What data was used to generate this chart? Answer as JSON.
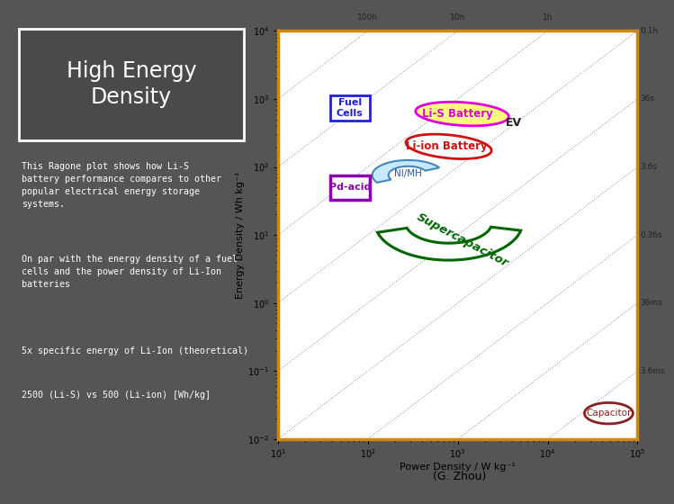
{
  "bg_left": "#555555",
  "title": "High Energy\nDensity",
  "title_color": "#ffffff",
  "text1": "This Ragone plot shows how Li-S\nbattery performance compares to other\npopular electrical energy storage\nsystems.",
  "text2": "On par with the energy density of a fuel\ncells and the power density of Li-Ion\nbatteries",
  "text3": "5x specific energy of Li-Ion (theoretical)",
  "text4": "2500 (Li-S) vs 500 (Li-ion) [Wh/kg]",
  "credit": "(G. Zhou)",
  "xlabel": "Power Density / W kg⁻¹",
  "ylabel": "Energy Density / Wh kg⁻¹",
  "time_params": [
    [
      "100h",
      360000
    ],
    [
      "10h",
      36000
    ],
    [
      "1h",
      3600
    ],
    [
      "0.1h",
      360
    ],
    [
      "36s",
      36
    ],
    [
      "3.6s",
      3.6
    ],
    [
      "0.36s",
      0.36
    ],
    [
      "36ms",
      0.036
    ],
    [
      "3.6ms",
      0.0036
    ]
  ]
}
